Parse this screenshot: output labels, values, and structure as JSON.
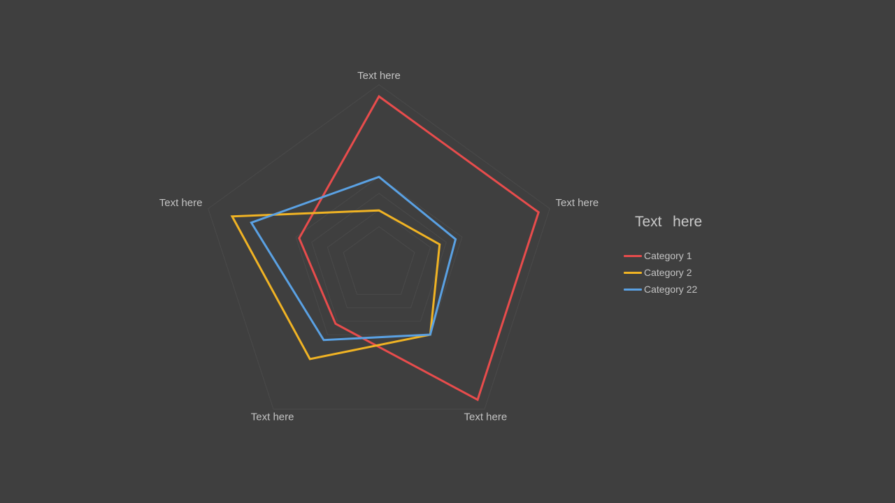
{
  "chart_data": {
    "type": "radar",
    "axes": [
      "Text here",
      "Text here",
      "Text here",
      "Text here",
      "Text here"
    ],
    "legend": {
      "title": "Text  here",
      "position": "right"
    },
    "grid": true,
    "range": [
      0,
      5
    ],
    "series": [
      {
        "name": "Category 1",
        "color": "#e84c4c",
        "values": [
          5.0,
          5.0,
          5.0,
          2.2,
          2.5
        ]
      },
      {
        "name": "Category 2",
        "color": "#f0b324",
        "values": [
          1.6,
          1.9,
          2.6,
          3.5,
          4.6
        ]
      },
      {
        "name": "Category 22",
        "color": "#5aa1e3",
        "values": [
          2.6,
          2.4,
          2.6,
          2.8,
          4.0
        ]
      }
    ]
  }
}
